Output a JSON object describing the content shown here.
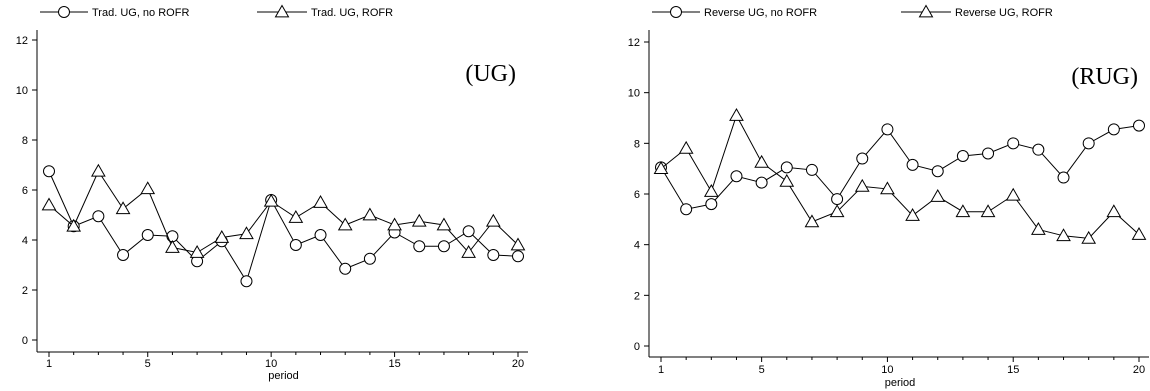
{
  "chart_data": [
    {
      "type": "line",
      "panel_label": "(UG)",
      "xlabel": "period",
      "ylabel": "",
      "x": [
        1,
        2,
        3,
        4,
        5,
        6,
        7,
        8,
        9,
        10,
        11,
        12,
        13,
        14,
        15,
        16,
        17,
        18,
        19,
        20
      ],
      "xticks": [
        1,
        5,
        10,
        15,
        20
      ],
      "yticks": [
        0,
        2,
        4,
        6,
        8,
        10,
        12
      ],
      "ylim": [
        0,
        12.5
      ],
      "xlim": [
        1,
        20
      ],
      "grid": false,
      "legend_position": "top",
      "series": [
        {
          "name": "Trad. UG, no ROFR",
          "marker": "circle",
          "values": [
            6.75,
            4.55,
            4.95,
            3.4,
            4.2,
            4.15,
            3.15,
            3.95,
            2.35,
            5.6,
            3.8,
            4.2,
            2.85,
            3.25,
            4.3,
            3.75,
            3.75,
            4.35,
            3.4,
            3.35
          ]
        },
        {
          "name": "Trad. UG, ROFR",
          "marker": "triangle",
          "values": [
            5.4,
            4.55,
            6.75,
            5.25,
            6.05,
            3.7,
            3.5,
            4.1,
            4.25,
            5.55,
            4.9,
            5.5,
            4.6,
            5.0,
            4.6,
            4.75,
            4.6,
            3.5,
            4.75,
            3.8
          ]
        }
      ]
    },
    {
      "type": "line",
      "panel_label": "(RUG)",
      "xlabel": "period",
      "ylabel": "",
      "x": [
        1,
        2,
        3,
        4,
        5,
        6,
        7,
        8,
        9,
        10,
        11,
        12,
        13,
        14,
        15,
        16,
        17,
        18,
        19,
        20
      ],
      "xticks": [
        1,
        5,
        10,
        15,
        20
      ],
      "yticks": [
        0,
        2,
        4,
        6,
        8,
        10,
        12
      ],
      "ylim": [
        0,
        12.5
      ],
      "xlim": [
        1,
        20
      ],
      "grid": false,
      "legend_position": "top",
      "series": [
        {
          "name": "Reverse UG, no ROFR",
          "marker": "circle",
          "values": [
            7.05,
            5.4,
            5.6,
            6.7,
            6.45,
            7.05,
            6.95,
            5.8,
            7.4,
            8.55,
            7.15,
            6.9,
            7.5,
            7.6,
            8.0,
            7.75,
            6.65,
            8.0,
            8.55,
            8.7
          ]
        },
        {
          "name": "Reverse UG, ROFR",
          "marker": "triangle",
          "values": [
            7.0,
            7.8,
            6.1,
            9.1,
            7.25,
            6.5,
            4.9,
            5.3,
            6.3,
            6.2,
            5.15,
            5.9,
            5.3,
            5.3,
            5.95,
            4.6,
            4.35,
            4.25,
            5.3,
            4.4
          ]
        }
      ]
    }
  ]
}
